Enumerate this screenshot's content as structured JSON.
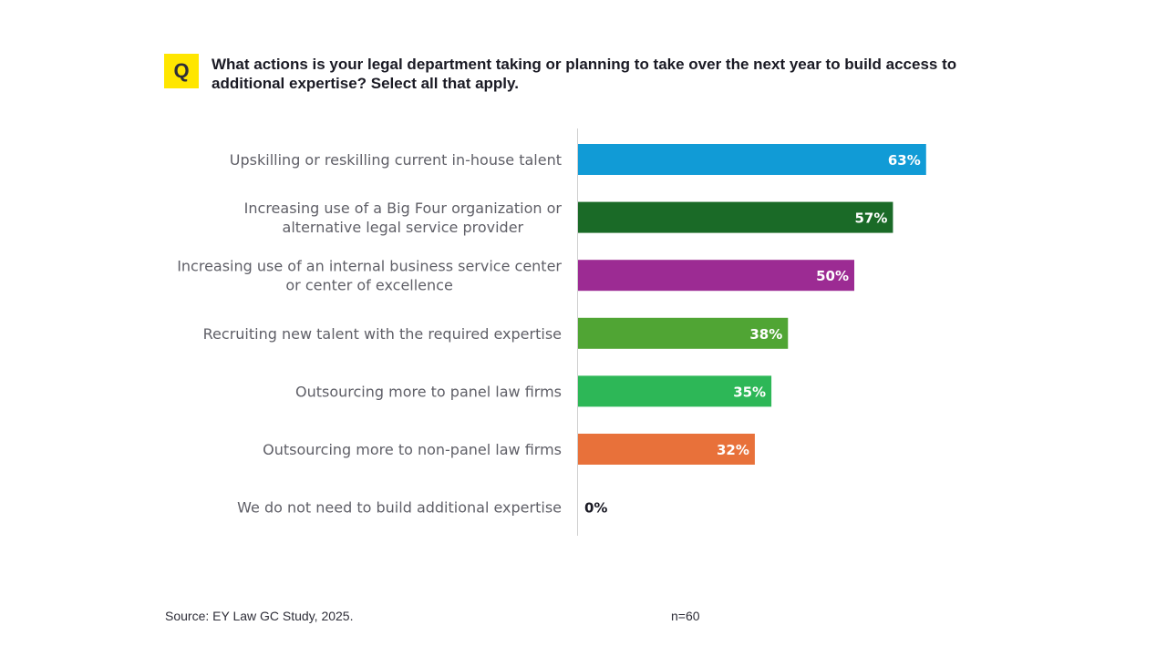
{
  "question": {
    "badge": "Q",
    "text": "What actions is your legal department taking or planning to take over the next year to build access to additional expertise? Select all that apply."
  },
  "chart_data": {
    "type": "bar",
    "orientation": "horizontal",
    "title": "What actions is your legal department taking or planning to take over the next year to build access to additional expertise? Select all that apply.",
    "xlabel": "",
    "ylabel": "",
    "xlim": [
      0,
      100
    ],
    "grid": false,
    "unit": "%",
    "categories": [
      [
        "Upskilling or reskilling current in-house talent"
      ],
      [
        "Increasing use of a Big Four organization or",
        "alternative legal service provider"
      ],
      [
        "Increasing use of an internal business service center",
        "or center of excellence"
      ],
      [
        "Recruiting new talent with the required expertise"
      ],
      [
        "Outsourcing more to panel law firms"
      ],
      [
        "Outsourcing more to non-panel law firms"
      ],
      [
        "We do not need to build additional expertise"
      ]
    ],
    "values": [
      63,
      57,
      50,
      38,
      35,
      32,
      0
    ],
    "value_labels": [
      "63%",
      "57%",
      "50%",
      "38%",
      "35%",
      "32%",
      "0%"
    ],
    "colors": [
      "#119bd6",
      "#1a6a27",
      "#9c2b93",
      "#50a534",
      "#2db757",
      "#e8713a",
      "#ffffff"
    ]
  },
  "footer": {
    "source": "Source: EY Law GC Study, 2025.",
    "n": "n=60"
  }
}
